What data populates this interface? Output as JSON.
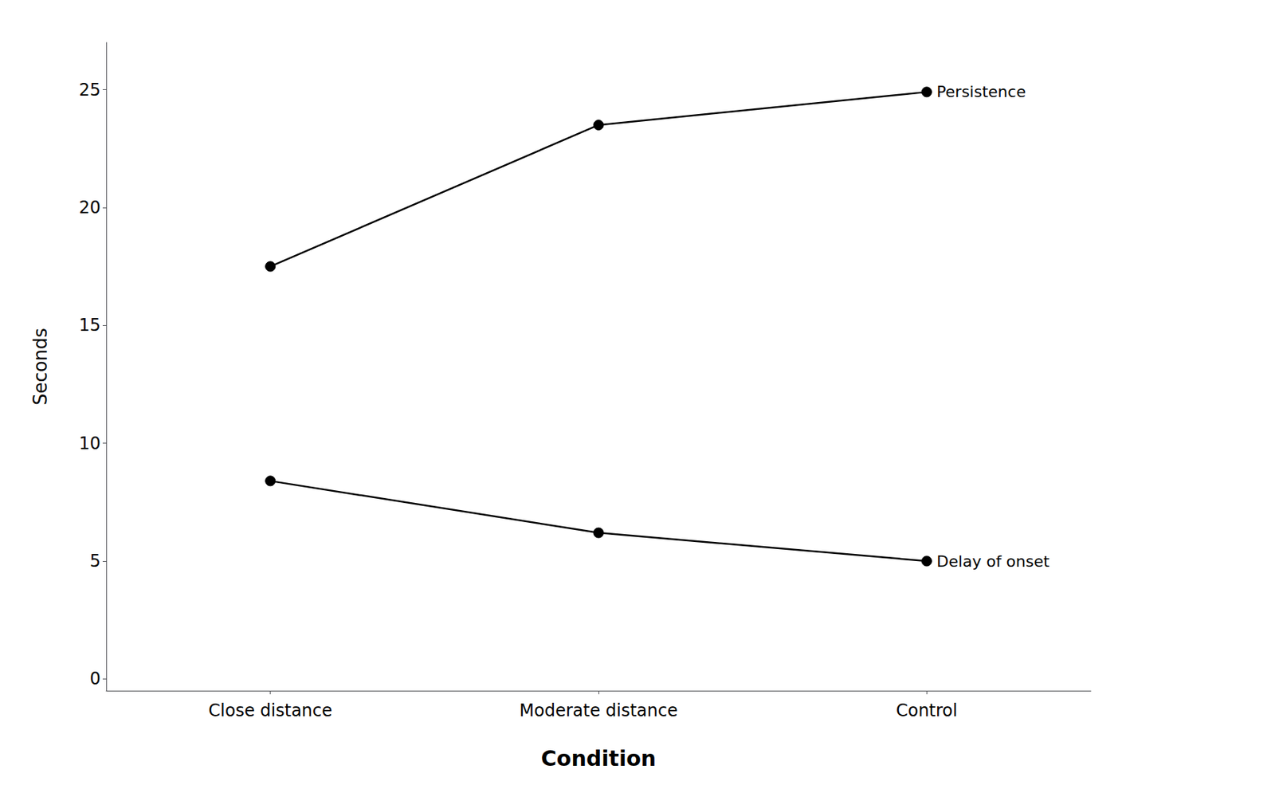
{
  "chart_data": {
    "type": "line",
    "xlabel": "Condition",
    "ylabel": "Seconds",
    "categories": [
      "Close distance",
      "Moderate distance",
      "Control"
    ],
    "series": [
      {
        "name": "Persistence",
        "color": "#000000",
        "values": [
          17.5,
          23.5,
          24.9
        ]
      },
      {
        "name": "Delay of onset",
        "color": "#000000",
        "values": [
          8.4,
          6.2,
          5.0
        ]
      }
    ],
    "ylim": [
      -0.5,
      27
    ],
    "yticks": [
      0,
      5,
      10,
      15,
      20,
      25
    ],
    "marker": "circle",
    "grid": false
  }
}
